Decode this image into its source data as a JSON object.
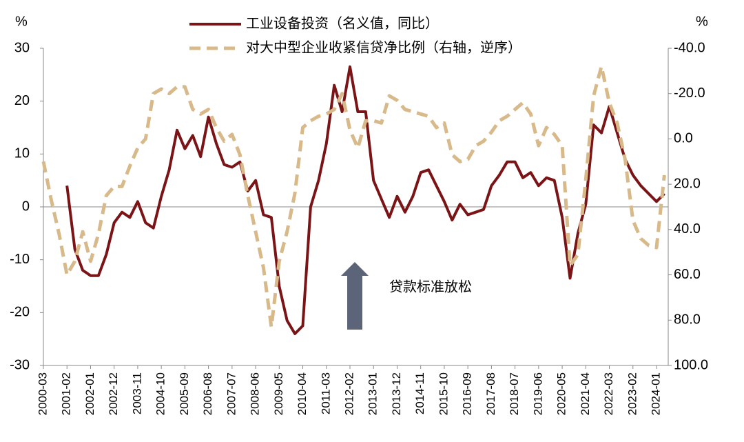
{
  "chart_data": {
    "type": "line",
    "y_unit": "%",
    "y2_unit": "%",
    "annotation": "贷款标准放松",
    "legend": "top",
    "categories": [
      "2000-03",
      null,
      null,
      "2001-02",
      null,
      null,
      "2002-01",
      null,
      null,
      "2002-12",
      null,
      null,
      "2003-11",
      null,
      null,
      "2004-10",
      null,
      null,
      "2005-09",
      null,
      null,
      "2006-08",
      null,
      null,
      "2007-07",
      null,
      null,
      "2008-06",
      null,
      null,
      "2009-05",
      null,
      null,
      "2010-04",
      null,
      null,
      "2011-03",
      null,
      null,
      "2012-02",
      null,
      null,
      "2013-01",
      null,
      null,
      "2013-12",
      null,
      null,
      "2014-11",
      null,
      null,
      "2015-10",
      null,
      null,
      "2016-09",
      null,
      null,
      "2017-08",
      null,
      null,
      "2018-07",
      null,
      null,
      "2019-06",
      null,
      null,
      "2020-05",
      null,
      null,
      "2021-04",
      null,
      null,
      "2022-03",
      null,
      null,
      "2023-02",
      null,
      null,
      "2024-01",
      null
    ],
    "series": [
      {
        "name": "工业设备投资（名义值，同比）",
        "color": "#7b1416",
        "style": "solid",
        "values": [
          null,
          null,
          null,
          4,
          -8,
          -12,
          -13,
          -13,
          -9,
          -3,
          -1,
          -2,
          1,
          -3,
          -4,
          2,
          7,
          14.5,
          11,
          13.5,
          9.5,
          17,
          12,
          8,
          7.5,
          8.5,
          3,
          5,
          -1.5,
          -2,
          -15,
          -21.5,
          -24,
          -22.5,
          0,
          5,
          12,
          23,
          18,
          26.5,
          18,
          18,
          5,
          1.5,
          -2,
          2,
          -1,
          2,
          6.5,
          7,
          4,
          1,
          -2.5,
          0.5,
          -1.5,
          -1,
          -0.5,
          4,
          6,
          8.5,
          8.5,
          5.5,
          6.5,
          4,
          5.5,
          5,
          -2,
          -13.5,
          -5,
          0.5,
          15.5,
          14,
          19,
          14,
          9,
          6,
          4,
          2.5,
          1,
          2.5
        ]
      },
      {
        "name": "对大中型企业收紧信贷净比例（右轴，逆序）",
        "color": "#d8b98a",
        "style": "dashed",
        "axis": "y2",
        "values": [
          10,
          27,
          42,
          60,
          54,
          41,
          54,
          42,
          25,
          21,
          21,
          12,
          4,
          0,
          -20,
          -22,
          -20,
          -23,
          -23,
          -13,
          -11,
          -13,
          -5,
          1,
          -2,
          7,
          25,
          41,
          57,
          83,
          54,
          41,
          24,
          -5,
          -8,
          -10,
          -11,
          -13,
          -20,
          -4,
          4,
          -8,
          -8,
          -7,
          -19,
          -17,
          -13,
          -12,
          -11,
          -10,
          -5,
          -7,
          7,
          10,
          9,
          3,
          1,
          -3,
          -8,
          -10,
          -13,
          -16,
          -11,
          3,
          -5,
          -2,
          3,
          56,
          51,
          18,
          -19,
          -32,
          -16,
          -7,
          9,
          36,
          44,
          47,
          48,
          16
        ]
      }
    ],
    "ylim": [
      -30,
      30
    ],
    "yticks": [
      -30,
      -20,
      -10,
      0,
      10,
      20,
      30
    ],
    "y2lim": [
      100,
      -40
    ],
    "y2_reversed": true,
    "y2ticks": [
      {
        "value": -40,
        "label": "-40.0"
      },
      {
        "value": -20,
        "label": "-20.0"
      },
      {
        "value": 0,
        "label": "0.0"
      },
      {
        "value": 20,
        "label": "20.0"
      },
      {
        "value": 40,
        "label": "40.0"
      },
      {
        "value": 60,
        "label": "60.0"
      },
      {
        "value": 80,
        "label": "80.0"
      },
      {
        "value": 100,
        "label": "100.0"
      }
    ]
  }
}
